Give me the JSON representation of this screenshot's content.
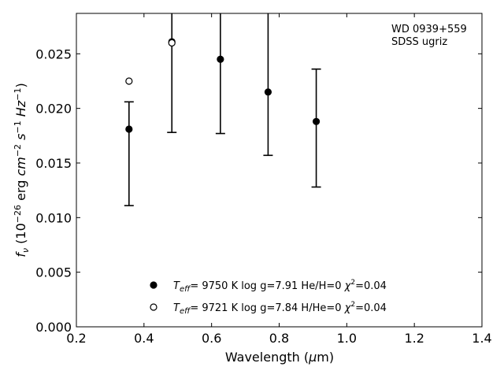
{
  "chart_data": {
    "type": "scatter",
    "annotation": {
      "line1": "WD 0939+559",
      "line2": "SDSS ugriz"
    },
    "xlabel": "Wavelength (μm)",
    "ylabel": "f_ν (10^-26 erg cm^-2 s^-1 Hz^-1)",
    "xlim": [
      0.2,
      1.4
    ],
    "ylim": [
      0.0,
      0.0287
    ],
    "xticks": [
      0.2,
      0.4,
      0.6,
      0.8,
      1.0,
      1.2,
      1.4
    ],
    "xtick_labels": [
      "0.2",
      "0.4",
      "0.6",
      "0.8",
      "1.0",
      "1.2",
      "1.4"
    ],
    "yticks": [
      0.0,
      0.005,
      0.01,
      0.015,
      0.02,
      0.025
    ],
    "ytick_labels": [
      "0.000",
      "0.005",
      "0.010",
      "0.015",
      "0.020",
      "0.025"
    ],
    "grid": false,
    "legend_position": "bottom-center",
    "observed": {
      "x": [
        0.3557,
        0.4825,
        0.6261,
        0.7672,
        0.9097
      ],
      "y": [
        0.0181,
        0.0261,
        0.0245,
        0.0215,
        0.0188
      ],
      "err_low": [
        0.0111,
        0.0178,
        0.0177,
        0.0157,
        0.0128
      ],
      "err_high": [
        0.0206,
        null,
        null,
        null,
        0.0236
      ]
    },
    "series": [
      {
        "name": "Teff= 9750 K log g=7.91 He/H=0 χ2=0.04",
        "marker": "filled",
        "x": [
          0.3557,
          0.4825,
          0.6261,
          0.7672,
          0.9097
        ],
        "y": [
          0.0181,
          0.0261,
          0.0245,
          0.0215,
          0.0188
        ]
      },
      {
        "name": "Teff= 9721 K log g=7.84 H/He=0 χ2=0.04",
        "marker": "open",
        "x": [
          0.3557,
          0.4825
        ],
        "y": [
          0.0225,
          0.026
        ]
      }
    ],
    "legend": [
      {
        "marker": "filled",
        "teff": "9750 K",
        "logg": "log g=7.91",
        "comp": "He/H=0",
        "chi2": "=0.04"
      },
      {
        "marker": "open",
        "teff": "9721 K",
        "logg": "log g=7.84",
        "comp": "H/He=0",
        "chi2": "=0.04"
      }
    ],
    "legend_teff_prefix": "=",
    "colors": {
      "marker": "#000000",
      "axes": "#000000",
      "background": "#ffffff"
    }
  }
}
